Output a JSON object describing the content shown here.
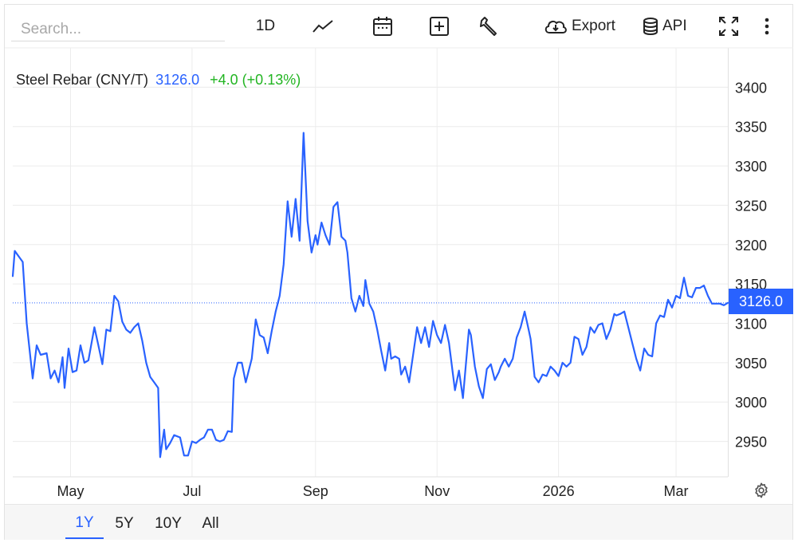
{
  "search": {
    "placeholder": "Search..."
  },
  "toolbar": {
    "interval_label": "1D",
    "export_label": "Export",
    "api_label": "API",
    "icons": [
      "line-chart-icon",
      "calendar-icon",
      "add-indicator-icon",
      "wrench-icon",
      "cloud-download-icon",
      "database-icon",
      "fullscreen-icon",
      "more-vertical-icon"
    ]
  },
  "legend": {
    "name": "Steel Rebar (CNY/T)",
    "last": "3126.0",
    "change": "+4.0 (+0.13%)"
  },
  "price_tag": "3126.0",
  "range_buttons": [
    {
      "label": "1Y",
      "active": true
    },
    {
      "label": "5Y",
      "active": false
    },
    {
      "label": "10Y",
      "active": false
    },
    {
      "label": "All",
      "active": false
    }
  ],
  "colors": {
    "line": "#2962ff",
    "change_positive": "#22b522",
    "grid": "#ececec"
  },
  "chart_data": {
    "type": "line",
    "title": "",
    "xlabel": "",
    "ylabel": "",
    "ylim": [
      2905,
      3450
    ],
    "y_ticks": [
      2950,
      3000,
      3050,
      3100,
      3150,
      3200,
      3250,
      3300,
      3350,
      3400
    ],
    "x_range": [
      "2025-04-02",
      "2026-03-27"
    ],
    "x_ticks": [
      {
        "date": "2025-05-01",
        "label": "May"
      },
      {
        "date": "2025-07-01",
        "label": "Jul"
      },
      {
        "date": "2025-09-01",
        "label": "Sep"
      },
      {
        "date": "2025-11-01",
        "label": "Nov"
      },
      {
        "date": "2026-01-01",
        "label": "2026"
      },
      {
        "date": "2026-03-01",
        "label": "Mar"
      }
    ],
    "grid": true,
    "last_price_line": 3126.0,
    "series": [
      {
        "name": "Steel Rebar (CNY/T)",
        "points": [
          [
            "2025-04-02",
            3160
          ],
          [
            "2025-04-03",
            3192
          ],
          [
            "2025-04-05",
            3185
          ],
          [
            "2025-04-07",
            3178
          ],
          [
            "2025-04-09",
            3100
          ],
          [
            "2025-04-12",
            3030
          ],
          [
            "2025-04-14",
            3072
          ],
          [
            "2025-04-16",
            3060
          ],
          [
            "2025-04-19",
            3062
          ],
          [
            "2025-04-21",
            3030
          ],
          [
            "2025-04-23",
            3040
          ],
          [
            "2025-04-25",
            3025
          ],
          [
            "2025-04-27",
            3057
          ],
          [
            "2025-04-28",
            3018
          ],
          [
            "2025-04-30",
            3068
          ],
          [
            "2025-05-02",
            3038
          ],
          [
            "2025-05-04",
            3040
          ],
          [
            "2025-05-06",
            3072
          ],
          [
            "2025-05-08",
            3050
          ],
          [
            "2025-05-10",
            3053
          ],
          [
            "2025-05-13",
            3095
          ],
          [
            "2025-05-15",
            3072
          ],
          [
            "2025-05-17",
            3048
          ],
          [
            "2025-05-19",
            3092
          ],
          [
            "2025-05-21",
            3090
          ],
          [
            "2025-05-23",
            3135
          ],
          [
            "2025-05-25",
            3128
          ],
          [
            "2025-05-27",
            3102
          ],
          [
            "2025-05-29",
            3092
          ],
          [
            "2025-05-31",
            3088
          ],
          [
            "2025-06-02",
            3095
          ],
          [
            "2025-06-04",
            3100
          ],
          [
            "2025-06-06",
            3078
          ],
          [
            "2025-06-08",
            3050
          ],
          [
            "2025-06-10",
            3032
          ],
          [
            "2025-06-12",
            3025
          ],
          [
            "2025-06-14",
            3018
          ],
          [
            "2025-06-15",
            2930
          ],
          [
            "2025-06-17",
            2965
          ],
          [
            "2025-06-18",
            2940
          ],
          [
            "2025-06-20",
            2948
          ],
          [
            "2025-06-22",
            2958
          ],
          [
            "2025-06-25",
            2955
          ],
          [
            "2025-06-27",
            2932
          ],
          [
            "2025-06-29",
            2932
          ],
          [
            "2025-07-01",
            2950
          ],
          [
            "2025-07-03",
            2948
          ],
          [
            "2025-07-05",
            2952
          ],
          [
            "2025-07-07",
            2955
          ],
          [
            "2025-07-09",
            2965
          ],
          [
            "2025-07-11",
            2965
          ],
          [
            "2025-07-13",
            2952
          ],
          [
            "2025-07-15",
            2950
          ],
          [
            "2025-07-17",
            2952
          ],
          [
            "2025-07-19",
            2963
          ],
          [
            "2025-07-21",
            2962
          ],
          [
            "2025-07-22",
            3030
          ],
          [
            "2025-07-24",
            3050
          ],
          [
            "2025-07-26",
            3050
          ],
          [
            "2025-07-28",
            3025
          ],
          [
            "2025-07-31",
            3055
          ],
          [
            "2025-08-02",
            3105
          ],
          [
            "2025-08-04",
            3085
          ],
          [
            "2025-08-06",
            3082
          ],
          [
            "2025-08-08",
            3062
          ],
          [
            "2025-08-10",
            3090
          ],
          [
            "2025-08-12",
            3115
          ],
          [
            "2025-08-14",
            3135
          ],
          [
            "2025-08-16",
            3175
          ],
          [
            "2025-08-18",
            3255
          ],
          [
            "2025-08-20",
            3210
          ],
          [
            "2025-08-22",
            3258
          ],
          [
            "2025-08-24",
            3205
          ],
          [
            "2025-08-26",
            3342
          ],
          [
            "2025-08-28",
            3230
          ],
          [
            "2025-08-30",
            3190
          ],
          [
            "2025-09-01",
            3212
          ],
          [
            "2025-09-02",
            3200
          ],
          [
            "2025-09-04",
            3228
          ],
          [
            "2025-09-06",
            3212
          ],
          [
            "2025-09-08",
            3200
          ],
          [
            "2025-09-10",
            3248
          ],
          [
            "2025-09-12",
            3254
          ],
          [
            "2025-09-14",
            3210
          ],
          [
            "2025-09-16",
            3205
          ],
          [
            "2025-09-17",
            3190
          ],
          [
            "2025-09-19",
            3132
          ],
          [
            "2025-09-21",
            3115
          ],
          [
            "2025-09-23",
            3135
          ],
          [
            "2025-09-25",
            3122
          ],
          [
            "2025-09-26",
            3155
          ],
          [
            "2025-09-28",
            3125
          ],
          [
            "2025-09-30",
            3115
          ],
          [
            "2025-10-02",
            3092
          ],
          [
            "2025-10-04",
            3065
          ],
          [
            "2025-10-06",
            3040
          ],
          [
            "2025-10-08",
            3075
          ],
          [
            "2025-10-09",
            3055
          ],
          [
            "2025-10-11",
            3058
          ],
          [
            "2025-10-13",
            3055
          ],
          [
            "2025-10-14",
            3035
          ],
          [
            "2025-10-16",
            3045
          ],
          [
            "2025-10-18",
            3025
          ],
          [
            "2025-10-20",
            3060
          ],
          [
            "2025-10-22",
            3095
          ],
          [
            "2025-10-24",
            3075
          ],
          [
            "2025-10-26",
            3095
          ],
          [
            "2025-10-28",
            3070
          ],
          [
            "2025-10-30",
            3103
          ],
          [
            "2025-11-01",
            3085
          ],
          [
            "2025-11-03",
            3075
          ],
          [
            "2025-11-05",
            3098
          ],
          [
            "2025-11-07",
            3075
          ],
          [
            "2025-11-09",
            3035
          ],
          [
            "2025-11-10",
            3015
          ],
          [
            "2025-11-12",
            3040
          ],
          [
            "2025-11-14",
            3005
          ],
          [
            "2025-11-17",
            3092
          ],
          [
            "2025-11-18",
            3085
          ],
          [
            "2025-11-20",
            3045
          ],
          [
            "2025-11-22",
            3020
          ],
          [
            "2025-11-24",
            3005
          ],
          [
            "2025-11-26",
            3042
          ],
          [
            "2025-11-28",
            3048
          ],
          [
            "2025-11-30",
            3028
          ],
          [
            "2025-12-02",
            3038
          ],
          [
            "2025-12-03",
            3045
          ],
          [
            "2025-12-05",
            3055
          ],
          [
            "2025-12-07",
            3045
          ],
          [
            "2025-12-09",
            3055
          ],
          [
            "2025-12-11",
            3082
          ],
          [
            "2025-12-13",
            3095
          ],
          [
            "2025-12-15",
            3115
          ],
          [
            "2025-12-17",
            3092
          ],
          [
            "2025-12-18",
            3080
          ],
          [
            "2025-12-20",
            3032
          ],
          [
            "2025-12-22",
            3025
          ],
          [
            "2025-12-24",
            3035
          ],
          [
            "2025-12-26",
            3033
          ],
          [
            "2025-12-28",
            3045
          ],
          [
            "2025-12-30",
            3040
          ],
          [
            "2026-01-01",
            3033
          ],
          [
            "2026-01-03",
            3050
          ],
          [
            "2026-01-05",
            3045
          ],
          [
            "2026-01-07",
            3050
          ],
          [
            "2026-01-09",
            3083
          ],
          [
            "2026-01-11",
            3080
          ],
          [
            "2026-01-13",
            3060
          ],
          [
            "2026-01-15",
            3070
          ],
          [
            "2026-01-17",
            3095
          ],
          [
            "2026-01-19",
            3088
          ],
          [
            "2026-01-21",
            3098
          ],
          [
            "2026-01-23",
            3100
          ],
          [
            "2026-01-25",
            3080
          ],
          [
            "2026-01-27",
            3092
          ],
          [
            "2026-01-29",
            3112
          ],
          [
            "2026-01-30",
            3110
          ],
          [
            "2026-02-01",
            3112
          ],
          [
            "2026-02-03",
            3115
          ],
          [
            "2026-02-05",
            3095
          ],
          [
            "2026-02-07",
            3075
          ],
          [
            "2026-02-09",
            3055
          ],
          [
            "2026-02-11",
            3040
          ],
          [
            "2026-02-13",
            3068
          ],
          [
            "2026-02-15",
            3060
          ],
          [
            "2026-02-17",
            3058
          ],
          [
            "2026-02-19",
            3100
          ],
          [
            "2026-02-21",
            3110
          ],
          [
            "2026-02-23",
            3108
          ],
          [
            "2026-02-25",
            3130
          ],
          [
            "2026-02-27",
            3120
          ],
          [
            "2026-03-01",
            3135
          ],
          [
            "2026-03-03",
            3132
          ],
          [
            "2026-03-05",
            3158
          ],
          [
            "2026-03-07",
            3135
          ],
          [
            "2026-03-09",
            3133
          ],
          [
            "2026-03-11",
            3145
          ],
          [
            "2026-03-13",
            3145
          ],
          [
            "2026-03-15",
            3148
          ],
          [
            "2026-03-17",
            3135
          ],
          [
            "2026-03-19",
            3125
          ],
          [
            "2026-03-21",
            3125
          ],
          [
            "2026-03-23",
            3125
          ],
          [
            "2026-03-25",
            3123
          ],
          [
            "2026-03-27",
            3126
          ]
        ]
      }
    ]
  }
}
